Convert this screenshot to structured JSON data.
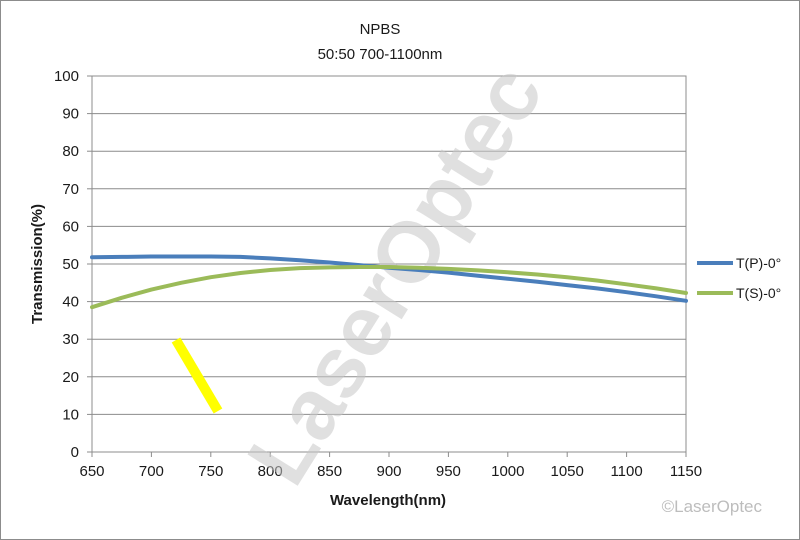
{
  "chart_data": {
    "type": "line",
    "title_line1": "NPBS",
    "title_line2": "50:50   700-1100nm",
    "xlabel": "Wavelength(nm)",
    "ylabel": "Transmission(%)",
    "xlim": [
      650,
      1150
    ],
    "ylim": [
      0,
      100
    ],
    "x_ticks": [
      650,
      700,
      750,
      800,
      850,
      900,
      950,
      1000,
      1050,
      1100,
      1150
    ],
    "y_ticks": [
      0,
      10,
      20,
      30,
      40,
      50,
      60,
      70,
      80,
      90,
      100
    ],
    "grid": "horizontal",
    "legend_position": "right",
    "series": [
      {
        "name": "T(P)-0°",
        "color": "#4a7ebb",
        "x": [
          650,
          675,
          700,
          725,
          750,
          775,
          800,
          825,
          850,
          875,
          900,
          925,
          950,
          975,
          1000,
          1025,
          1050,
          1075,
          1100,
          1125,
          1150
        ],
        "y": [
          51.8,
          51.9,
          52.0,
          52.0,
          52.0,
          51.9,
          51.5,
          51.0,
          50.4,
          49.7,
          49.0,
          48.4,
          47.7,
          46.9,
          46.1,
          45.3,
          44.4,
          43.5,
          42.5,
          41.4,
          40.2
        ]
      },
      {
        "name": "T(S)-0°",
        "color": "#9bbb59",
        "x": [
          650,
          675,
          700,
          725,
          750,
          775,
          800,
          825,
          850,
          875,
          900,
          925,
          950,
          975,
          1000,
          1025,
          1050,
          1075,
          1100,
          1125,
          1150
        ],
        "y": [
          38.5,
          41.0,
          43.2,
          45.0,
          46.5,
          47.6,
          48.4,
          48.9,
          49.1,
          49.2,
          49.2,
          49.0,
          48.7,
          48.3,
          47.8,
          47.2,
          46.5,
          45.6,
          44.6,
          43.5,
          42.3
        ]
      }
    ]
  },
  "watermark": "LaserOptec",
  "copyright": "©LaserOptec",
  "highlight_color": "#ffff00"
}
